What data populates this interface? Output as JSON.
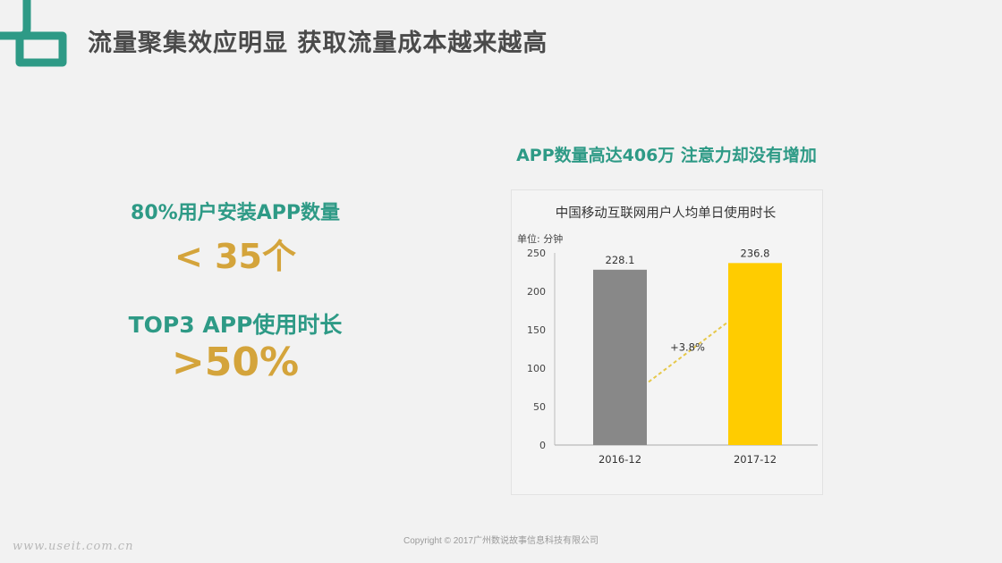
{
  "slide": {
    "title": "流量聚集效应明显 获取流量成本越来越高",
    "copyright": "Copyright © 2017广州数说故事信息科技有限公司",
    "watermark": "www.useit.com.cn"
  },
  "stats": [
    {
      "label": "80%用户安装APP数量",
      "value": "< 35个"
    },
    {
      "label": "TOP3 APP使用时长",
      "value": ">50%"
    }
  ],
  "chart_heading": "APP数量高达406万 注意力却没有增加",
  "colors": {
    "accent_teal": "#2e9a86",
    "accent_gold": "#d4a43b",
    "bar_2016": "#888888",
    "bar_2017": "#ffcc00"
  },
  "chart_data": {
    "type": "bar",
    "title": "中国移动互联网用户人均单日使用时长",
    "ylabel": "单位: 分钟",
    "categories": [
      "2016-12",
      "2017-12"
    ],
    "values": [
      228.1,
      236.8
    ],
    "value_labels": [
      "228.1",
      "236.8"
    ],
    "ylim": [
      0,
      250
    ],
    "yticks": [
      0,
      50,
      100,
      150,
      200,
      250
    ],
    "growth_label": "+3.8%",
    "grid": false,
    "legend": "none"
  }
}
